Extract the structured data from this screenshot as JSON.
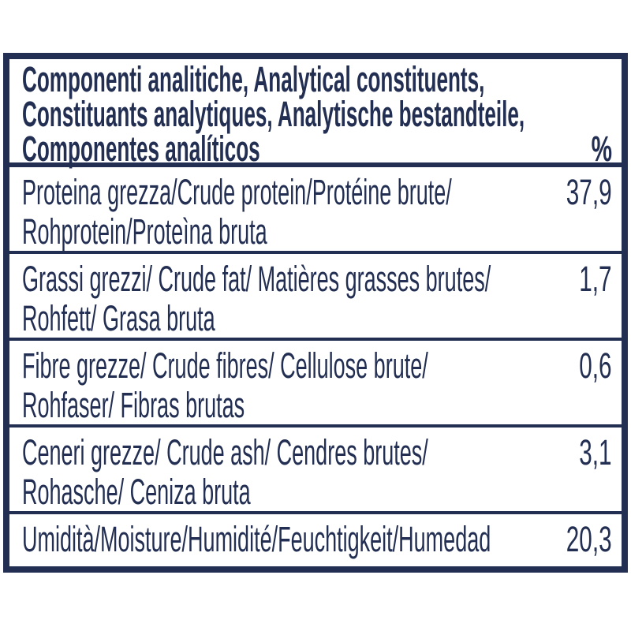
{
  "colors": {
    "ink": "#222e52",
    "background": "#ffffff"
  },
  "table": {
    "header": {
      "line1": "Componenti analitiche, Analytical constituents,",
      "line2": "Constituants analytiques, Analytische bestandteile,",
      "line3": "Componentes analíticos",
      "unit_label": "%"
    },
    "rows": [
      {
        "lines": [
          "Proteina grezza/Crude protein/Protéine brute/",
          "Rohprotein/Proteìna bruta"
        ],
        "value": "37,9"
      },
      {
        "lines": [
          "Grassi grezzi/ Crude fat/ Matières grasses brutes/",
          "Rohfett/ Grasa bruta"
        ],
        "value": "1,7"
      },
      {
        "lines": [
          "Fibre grezze/ Crude fibres/ Cellulose brute/",
          "Rohfaser/ Fibras brutas"
        ],
        "value": "0,6"
      },
      {
        "lines": [
          "Ceneri grezze/ Crude ash/ Cendres brutes/",
          "Rohasche/ Ceniza bruta"
        ],
        "value": "3,1"
      },
      {
        "lines": [
          "Umidità/Moisture/Humidité/Feuchtigkeit/Humedad"
        ],
        "value": "20,3"
      }
    ]
  }
}
